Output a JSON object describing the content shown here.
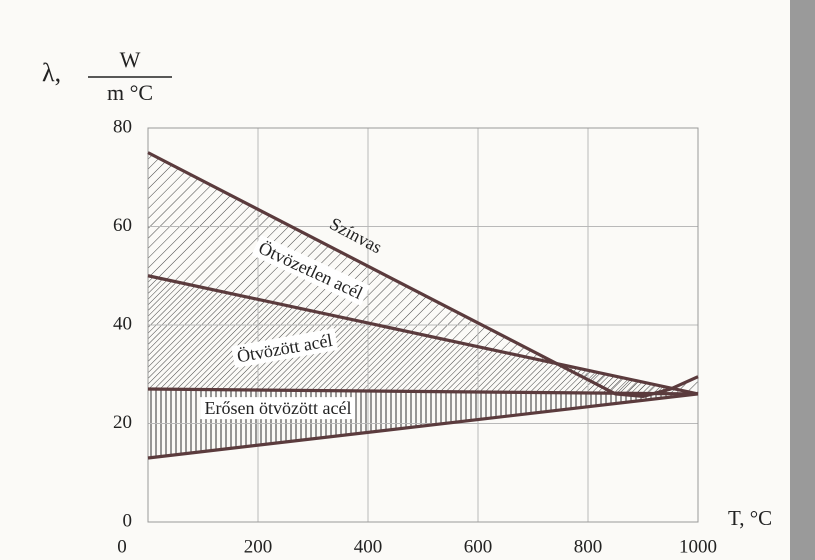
{
  "chart_data": {
    "type": "line",
    "y_label_symbol": "λ,",
    "y_label_unit_numerator": "W",
    "y_label_unit_denominator": "m °C",
    "x_label": "T, °C",
    "xlim": [
      0,
      1000
    ],
    "xticks": [
      0,
      200,
      400,
      600,
      800,
      1000
    ],
    "ylim": [
      0,
      80
    ],
    "yticks": [
      0,
      20,
      40,
      60,
      80
    ],
    "grid": true,
    "series": [
      {
        "name": "Színvas",
        "color": "#5b3b3d",
        "x": [
          0,
          850,
          900,
          950,
          1000
        ],
        "values": [
          75,
          26,
          25.5,
          27,
          29.5
        ]
      },
      {
        "name": "Ötvözetlen acél",
        "color": "#5b3b3d",
        "x": [
          0,
          1000
        ],
        "values": [
          50,
          26
        ]
      },
      {
        "name": "Ötvözött acél",
        "color": "#5b3b3d",
        "x": [
          0,
          1000
        ],
        "values": [
          27,
          26
        ]
      },
      {
        "name": "Erősen ötvözött acél",
        "color": "#5b3b3d",
        "x": [
          0,
          1000
        ],
        "values": [
          13,
          26
        ]
      }
    ]
  }
}
